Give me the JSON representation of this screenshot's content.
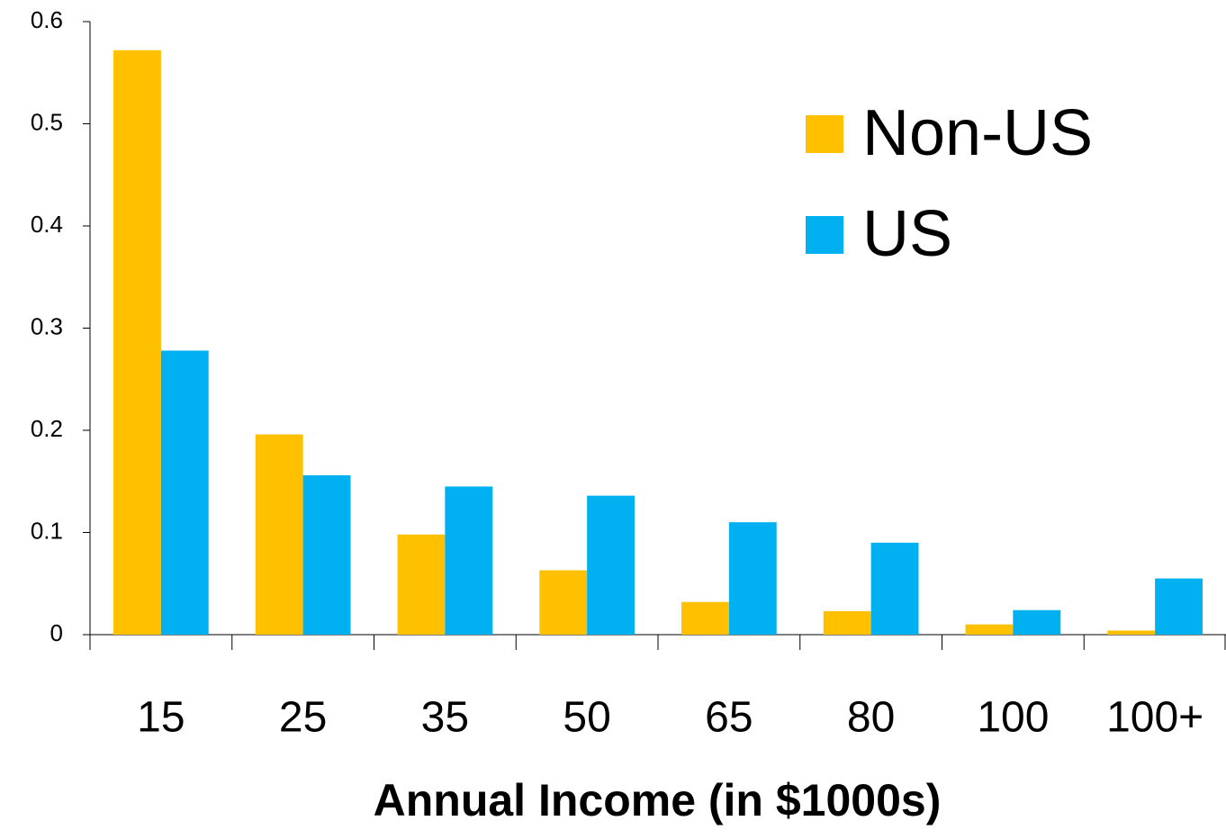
{
  "chart_data": {
    "type": "bar",
    "xlabel": "Annual Income (in $1000s)",
    "categories": [
      "15",
      "25",
      "35",
      "50",
      "65",
      "80",
      "100",
      "100+"
    ],
    "series": [
      {
        "name": "Non-US",
        "color": "#ffc000",
        "values": [
          0.572,
          0.196,
          0.098,
          0.063,
          0.032,
          0.023,
          0.01,
          0.004
        ]
      },
      {
        "name": "US",
        "color": "#00b0f0",
        "values": [
          0.278,
          0.156,
          0.145,
          0.136,
          0.11,
          0.09,
          0.024,
          0.055
        ]
      }
    ],
    "ylim": [
      0,
      0.6
    ],
    "yticks": [
      0,
      0.1,
      0.2,
      0.3,
      0.4,
      0.5,
      0.6
    ],
    "grid": false,
    "legend": "upper right"
  }
}
